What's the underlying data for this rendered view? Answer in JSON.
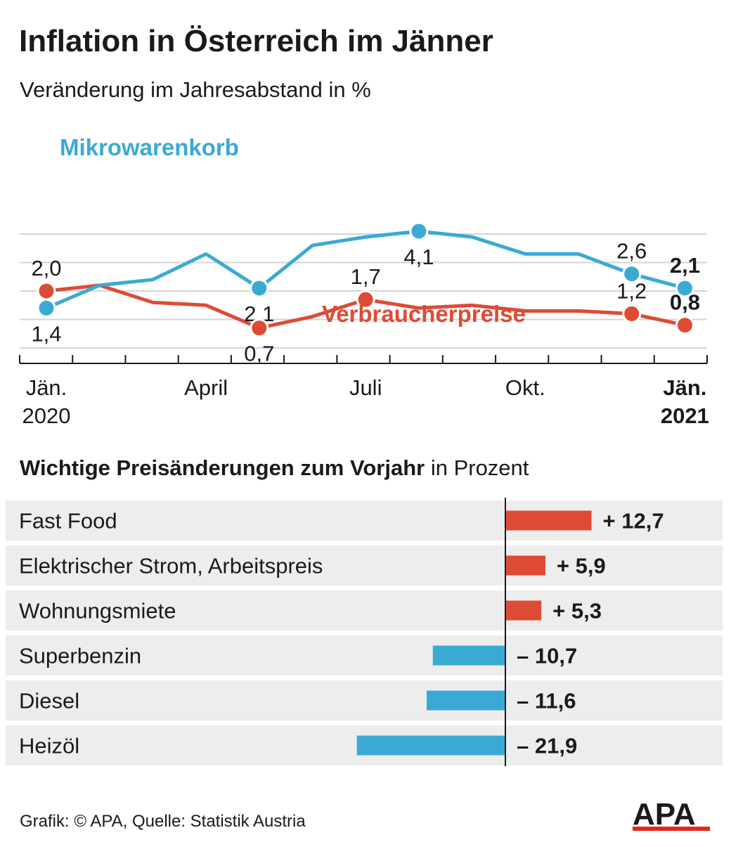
{
  "title": "Inflation in Österreich im Jänner",
  "subtitle": "Veränderung im Jahresabstand in %",
  "colors": {
    "mikro": "#3aaad4",
    "vpi": "#dd4b35",
    "grid": "#d4d4d4",
    "row_bg": "#ededed",
    "text": "#1a1a1a"
  },
  "chart_data": [
    {
      "type": "line",
      "x": [
        "2020-01",
        "2020-02",
        "2020-03",
        "2020-04",
        "2020-05",
        "2020-06",
        "2020-07",
        "2020-08",
        "2020-09",
        "2020-10",
        "2020-11",
        "2020-12",
        "2021-01"
      ],
      "x_tick_labels": [
        {
          "index": 0,
          "line1": "Jän.",
          "line2": "2020",
          "bold": false
        },
        {
          "index": 3,
          "line1": "April",
          "line2": "",
          "bold": false
        },
        {
          "index": 6,
          "line1": "Juli",
          "line2": "",
          "bold": false
        },
        {
          "index": 9,
          "line1": "Okt.",
          "line2": "",
          "bold": false
        },
        {
          "index": 12,
          "line1": "Jän.",
          "line2": "2021",
          "bold": true
        }
      ],
      "ylim": [
        0,
        4.2
      ],
      "grid": true,
      "series": [
        {
          "name": "Mikrowarenkorb",
          "color": "#3aaad4",
          "values": [
            1.4,
            2.2,
            2.4,
            3.3,
            2.1,
            3.6,
            3.9,
            4.1,
            3.9,
            3.3,
            3.3,
            2.6,
            2.1
          ],
          "markers": [
            {
              "index": 0,
              "label": "1,4",
              "pos": "below",
              "bold": false
            },
            {
              "index": 4,
              "label": "2,1",
              "pos": "below",
              "bold": false
            },
            {
              "index": 7,
              "label": "4,1",
              "pos": "below",
              "bold": false
            },
            {
              "index": 11,
              "label": "2,6",
              "pos": "above",
              "bold": false
            },
            {
              "index": 12,
              "label": "2,1",
              "pos": "above",
              "bold": true
            }
          ]
        },
        {
          "name": "Verbraucherpreise",
          "color": "#dd4b35",
          "values": [
            2.0,
            2.2,
            1.6,
            1.5,
            0.7,
            1.1,
            1.7,
            1.4,
            1.5,
            1.3,
            1.3,
            1.2,
            0.8
          ],
          "markers": [
            {
              "index": 0,
              "label": "2,0",
              "pos": "above",
              "bold": false
            },
            {
              "index": 4,
              "label": "0,7",
              "pos": "below",
              "bold": false
            },
            {
              "index": 6,
              "label": "1,7",
              "pos": "above",
              "bold": false
            },
            {
              "index": 11,
              "label": "1,2",
              "pos": "above",
              "bold": false
            },
            {
              "index": 12,
              "label": "0,8",
              "pos": "above",
              "bold": true
            }
          ]
        }
      ]
    },
    {
      "type": "bar",
      "title": "Wichtige Preisänderungen zum Vorjahr",
      "title_suffix": "in Prozent",
      "categories": [
        "Fast Food",
        "Elektrischer Strom, Arbeitspreis",
        "Wohnungsmiete",
        "Superbenzin",
        "Diesel",
        "Heizöl"
      ],
      "values": [
        12.7,
        5.9,
        5.3,
        -10.7,
        -11.6,
        -21.9
      ],
      "value_labels": [
        "+ 12,7",
        "+ 5,9",
        "+ 5,3",
        "– 10,7",
        "– 11,6",
        "– 21,9"
      ]
    }
  ],
  "footer": "Grafik: © APA, Quelle: Statistik Austria",
  "logo": {
    "text": "APA"
  }
}
